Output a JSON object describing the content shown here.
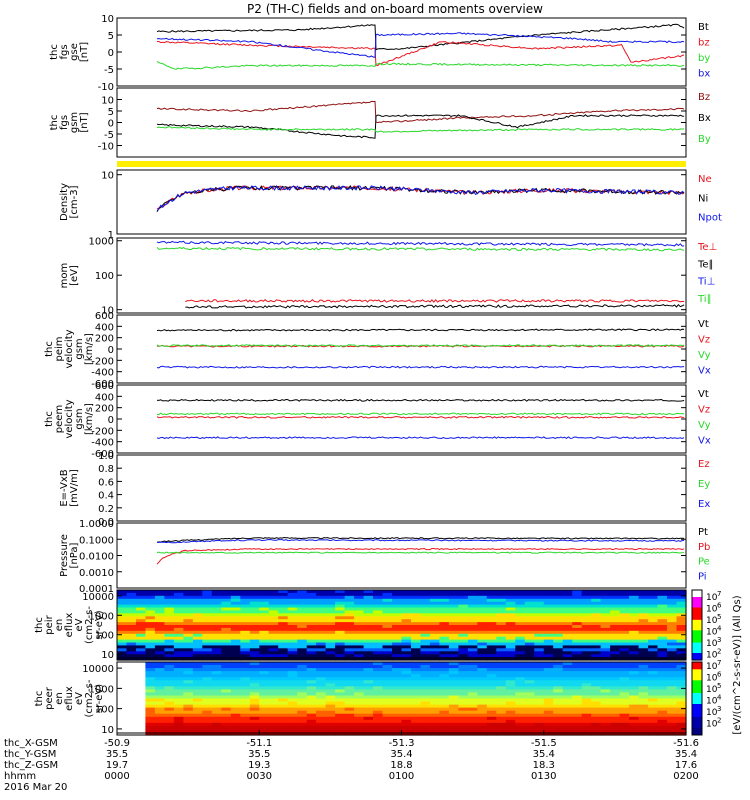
{
  "title": "P2 (TH-C) fields and on-board moments overview",
  "colors": {
    "black": "#000000",
    "red": "#e8141e",
    "green": "#28d828",
    "blue": "#1018e8",
    "brown": "#901010",
    "yellow": "#ffee00"
  },
  "chart_data": [
    {
      "type": "line",
      "id": "fgs_gse",
      "ylabel_lines": [
        "thc",
        "fgs",
        "gse",
        "[nT]"
      ],
      "ylim": [
        -10,
        10
      ],
      "ticks": [
        "10",
        "5",
        "0",
        "-5",
        "-10"
      ],
      "tick_values": [
        10,
        5,
        0,
        -5,
        -10
      ],
      "series": [
        {
          "name": "Bt",
          "color": "black",
          "segments": [
            [
              0,
              6
            ],
            [
              150,
              6.5
            ],
            [
              230,
              8
            ],
            [
              231,
              0.8
            ],
            [
              260,
              1
            ],
            [
              400,
              5
            ],
            [
              550,
              8
            ],
            [
              558,
              7
            ]
          ]
        },
        {
          "name": "bz",
          "color": "red",
          "segments": [
            [
              0,
              3
            ],
            [
              100,
              2
            ],
            [
              230,
              1
            ],
            [
              231,
              -4
            ],
            [
              300,
              3
            ],
            [
              400,
              1
            ],
            [
              490,
              2
            ],
            [
              500,
              -3
            ],
            [
              558,
              -1
            ]
          ]
        },
        {
          "name": "by",
          "color": "green",
          "segments": [
            [
              0,
              -3
            ],
            [
              20,
              -5
            ],
            [
              100,
              -4
            ],
            [
              230,
              -4
            ],
            [
              231,
              -3.5
            ],
            [
              400,
              -3.8
            ],
            [
              558,
              -4
            ]
          ]
        },
        {
          "name": "bx",
          "color": "blue",
          "segments": [
            [
              0,
              4
            ],
            [
              100,
              3
            ],
            [
              230,
              -1.5
            ],
            [
              231,
              5
            ],
            [
              320,
              5.5
            ],
            [
              440,
              4
            ],
            [
              480,
              3
            ],
            [
              558,
              3
            ]
          ]
        }
      ]
    },
    {
      "type": "line",
      "id": "fgs_gsm",
      "ylabel_lines": [
        "thc",
        "fgs",
        "gsm",
        "[nT]"
      ],
      "ylim": [
        -15,
        15
      ],
      "ticks": [
        "10",
        "5",
        "0",
        "-5",
        "-10"
      ],
      "tick_values": [
        10,
        5,
        0,
        -5,
        -10
      ],
      "series": [
        {
          "name": "Bz",
          "color": "brown",
          "segments": [
            [
              0,
              6
            ],
            [
              100,
              5
            ],
            [
              230,
              9
            ],
            [
              231,
              0
            ],
            [
              320,
              2
            ],
            [
              400,
              3
            ],
            [
              470,
              5
            ],
            [
              558,
              6
            ]
          ]
        },
        {
          "name": "Bx",
          "color": "black",
          "segments": [
            [
              0,
              -1
            ],
            [
              100,
              -2
            ],
            [
              200,
              -6
            ],
            [
              230,
              -6.5
            ],
            [
              231,
              3
            ],
            [
              320,
              3
            ],
            [
              380,
              -2
            ],
            [
              440,
              3
            ],
            [
              558,
              3
            ]
          ]
        },
        {
          "name": "By",
          "color": "green",
          "segments": [
            [
              0,
              -2
            ],
            [
              100,
              -3
            ],
            [
              230,
              -3
            ],
            [
              231,
              -4
            ],
            [
              400,
              -3
            ],
            [
              558,
              -3
            ]
          ]
        }
      ]
    },
    {
      "type": "line",
      "id": "density",
      "ylabel_lines": [
        "Density",
        "[cm-3]"
      ],
      "scale": "log",
      "ylim": [
        1,
        12
      ],
      "ticks": [
        "10",
        "1"
      ],
      "tick_values": [
        10,
        1
      ],
      "series": [
        {
          "name": "Ne",
          "color": "red",
          "segments": [
            [
              0,
              2.5
            ],
            [
              30,
              5
            ],
            [
              80,
              6
            ],
            [
              230,
              6
            ],
            [
              330,
              5
            ],
            [
              400,
              5.5
            ],
            [
              558,
              5
            ]
          ]
        },
        {
          "name": "Ni",
          "color": "black",
          "segments": [
            [
              0,
              2.5
            ],
            [
              30,
              5
            ],
            [
              80,
              6
            ],
            [
              230,
              6
            ],
            [
              330,
              5
            ],
            [
              400,
              5.5
            ],
            [
              558,
              5
            ]
          ]
        },
        {
          "name": "Npot",
          "color": "blue",
          "segments": [
            [
              0,
              2.5
            ],
            [
              30,
              5
            ],
            [
              80,
              6
            ],
            [
              230,
              6
            ],
            [
              330,
              5
            ],
            [
              400,
              5.5
            ],
            [
              558,
              5
            ]
          ]
        }
      ]
    },
    {
      "type": "line",
      "id": "temp",
      "ylabel_lines": [
        "mom",
        "[eV]"
      ],
      "scale": "log",
      "ylim": [
        8,
        1200
      ],
      "ticks": [
        "1000",
        "100",
        "10"
      ],
      "tick_values": [
        1000,
        100,
        10
      ],
      "series": [
        {
          "name": "Te⊥",
          "color": "red",
          "segments": [
            [
              30,
              18
            ],
            [
              558,
              18
            ]
          ]
        },
        {
          "name": "Te∥",
          "color": "black",
          "segments": [
            [
              30,
              12
            ],
            [
              558,
              13
            ]
          ]
        },
        {
          "name": "Ti⊥",
          "color": "blue",
          "segments": [
            [
              0,
              900
            ],
            [
              558,
              750
            ]
          ]
        },
        {
          "name": "Ti∥",
          "color": "green",
          "segments": [
            [
              0,
              600
            ],
            [
              558,
              550
            ]
          ]
        }
      ]
    },
    {
      "type": "line",
      "id": "peim",
      "ylabel_lines": [
        "thc",
        "peim",
        "velocity",
        "gsm",
        "[km/s]"
      ],
      "ylim": [
        -600,
        600
      ],
      "ticks": [
        "600",
        "400",
        "200",
        "0",
        "-200",
        "-400",
        "-600"
      ],
      "tick_values": [
        600,
        400,
        200,
        0,
        -200,
        -400,
        -600
      ],
      "series": [
        {
          "name": "Vt",
          "color": "black",
          "segments": [
            [
              0,
              330
            ],
            [
              558,
              340
            ]
          ]
        },
        {
          "name": "Vz",
          "color": "red",
          "segments": [
            [
              0,
              50
            ],
            [
              558,
              50
            ]
          ]
        },
        {
          "name": "Vy",
          "color": "green",
          "segments": [
            [
              0,
              60
            ],
            [
              558,
              60
            ]
          ]
        },
        {
          "name": "Vx",
          "color": "blue",
          "segments": [
            [
              0,
              -320
            ],
            [
              558,
              -320
            ]
          ]
        }
      ]
    },
    {
      "type": "line",
      "id": "peem",
      "ylabel_lines": [
        "thc",
        "peem",
        "velocity",
        "gsm",
        "[km/s]"
      ],
      "ylim": [
        -600,
        600
      ],
      "ticks": [
        "600",
        "400",
        "200",
        "0",
        "-200",
        "-400",
        "-600"
      ],
      "tick_values": [
        600,
        400,
        200,
        0,
        -200,
        -400,
        -600
      ],
      "series": [
        {
          "name": "Vt",
          "color": "black",
          "segments": [
            [
              0,
              330
            ],
            [
              558,
              330
            ]
          ]
        },
        {
          "name": "Vz",
          "color": "red",
          "segments": [
            [
              0,
              30
            ],
            [
              558,
              30
            ]
          ]
        },
        {
          "name": "Vy",
          "color": "green",
          "segments": [
            [
              0,
              90
            ],
            [
              558,
              90
            ]
          ]
        },
        {
          "name": "Vx",
          "color": "blue",
          "segments": [
            [
              0,
              -330
            ],
            [
              558,
              -330
            ]
          ]
        }
      ]
    },
    {
      "type": "line",
      "id": "efield",
      "ylabel_lines": [
        "E=-VxB",
        "[mV/m]"
      ],
      "ylim": [
        0,
        1
      ],
      "ticks": [
        "1.0",
        "0.8",
        "0.6",
        "0.4",
        "0.2",
        "0.0"
      ],
      "tick_values": [
        1,
        0.8,
        0.6,
        0.4,
        0.2,
        0
      ],
      "series": [
        {
          "name": "Ez",
          "color": "red",
          "segments": []
        },
        {
          "name": "Ey",
          "color": "green",
          "segments": []
        },
        {
          "name": "Ex",
          "color": "blue",
          "segments": []
        }
      ]
    },
    {
      "type": "line",
      "id": "pressure",
      "ylabel_lines": [
        "Pressure",
        "[nPa]"
      ],
      "scale": "log",
      "ylim": [
        0.0001,
        1
      ],
      "ticks": [
        "1.0000",
        "0.1000",
        "0.0100",
        "0.0010",
        "0.0001"
      ],
      "tick_values": [
        1,
        0.1,
        0.01,
        0.001,
        0.0001
      ],
      "series": [
        {
          "name": "Pt",
          "color": "black",
          "segments": [
            [
              0,
              0.07
            ],
            [
              100,
              0.12
            ],
            [
              558,
              0.11
            ]
          ]
        },
        {
          "name": "Pb",
          "color": "red",
          "segments": [
            [
              0,
              0.003
            ],
            [
              30,
              0.02
            ],
            [
              100,
              0.025
            ],
            [
              558,
              0.025
            ]
          ]
        },
        {
          "name": "Pe",
          "color": "green",
          "segments": [
            [
              0,
              0.015
            ],
            [
              558,
              0.015
            ]
          ]
        },
        {
          "name": "Pi",
          "color": "blue",
          "segments": [
            [
              0,
              0.06
            ],
            [
              100,
              0.09
            ],
            [
              558,
              0.08
            ]
          ]
        }
      ]
    },
    {
      "type": "heatmap",
      "id": "peir",
      "ylabel_lines": [
        "thc",
        "peir",
        "en",
        "eflux",
        "eV",
        "(cm2-s-",
        "sr-eV)"
      ],
      "scale": "log",
      "ylim": [
        5,
        20000
      ],
      "ticks": [
        "10000",
        "1000",
        "100",
        "10"
      ],
      "tick_values": [
        10000,
        1000,
        100,
        10
      ]
    },
    {
      "type": "heatmap",
      "id": "peer",
      "ylabel_lines": [
        "thc",
        "peer",
        "en",
        "eflux",
        "eV",
        "(cm2-s-",
        "sr-eV)"
      ],
      "scale": "log",
      "ylim": [
        5,
        20000
      ],
      "ticks": [
        "10000",
        "1000",
        "100",
        "10"
      ],
      "tick_values": [
        10000,
        1000,
        100,
        10
      ]
    }
  ],
  "colorbar": {
    "label": "[eV/(cm^2-s-sr-eV)] (All Qs)",
    "ticks": [
      "10",
      "10",
      "10",
      "10",
      "10",
      "10",
      "10",
      "10",
      "10",
      "10",
      "10",
      "10"
    ],
    "exponents": [
      "7",
      "6",
      "5",
      "4",
      "3",
      "2",
      "7",
      "6",
      "5",
      "4",
      "3",
      "2"
    ]
  },
  "xaxis": {
    "row_labels": [
      "thc_X-GSM",
      "thc_Y-GSM",
      "thc_Z-GSM",
      "hhmm",
      "2016 Mar 20"
    ],
    "columns": [
      [
        "-50.9",
        "35.5",
        "19.7",
        "0000"
      ],
      [
        "-51.1",
        "35.5",
        "19.3",
        "0030"
      ],
      [
        "-51.3",
        "35.4",
        "18.8",
        "0100"
      ],
      [
        "-51.5",
        "35.4",
        "18.3",
        "0130"
      ],
      [
        "-51.6",
        "35.4",
        "17.6",
        "0200"
      ]
    ]
  }
}
